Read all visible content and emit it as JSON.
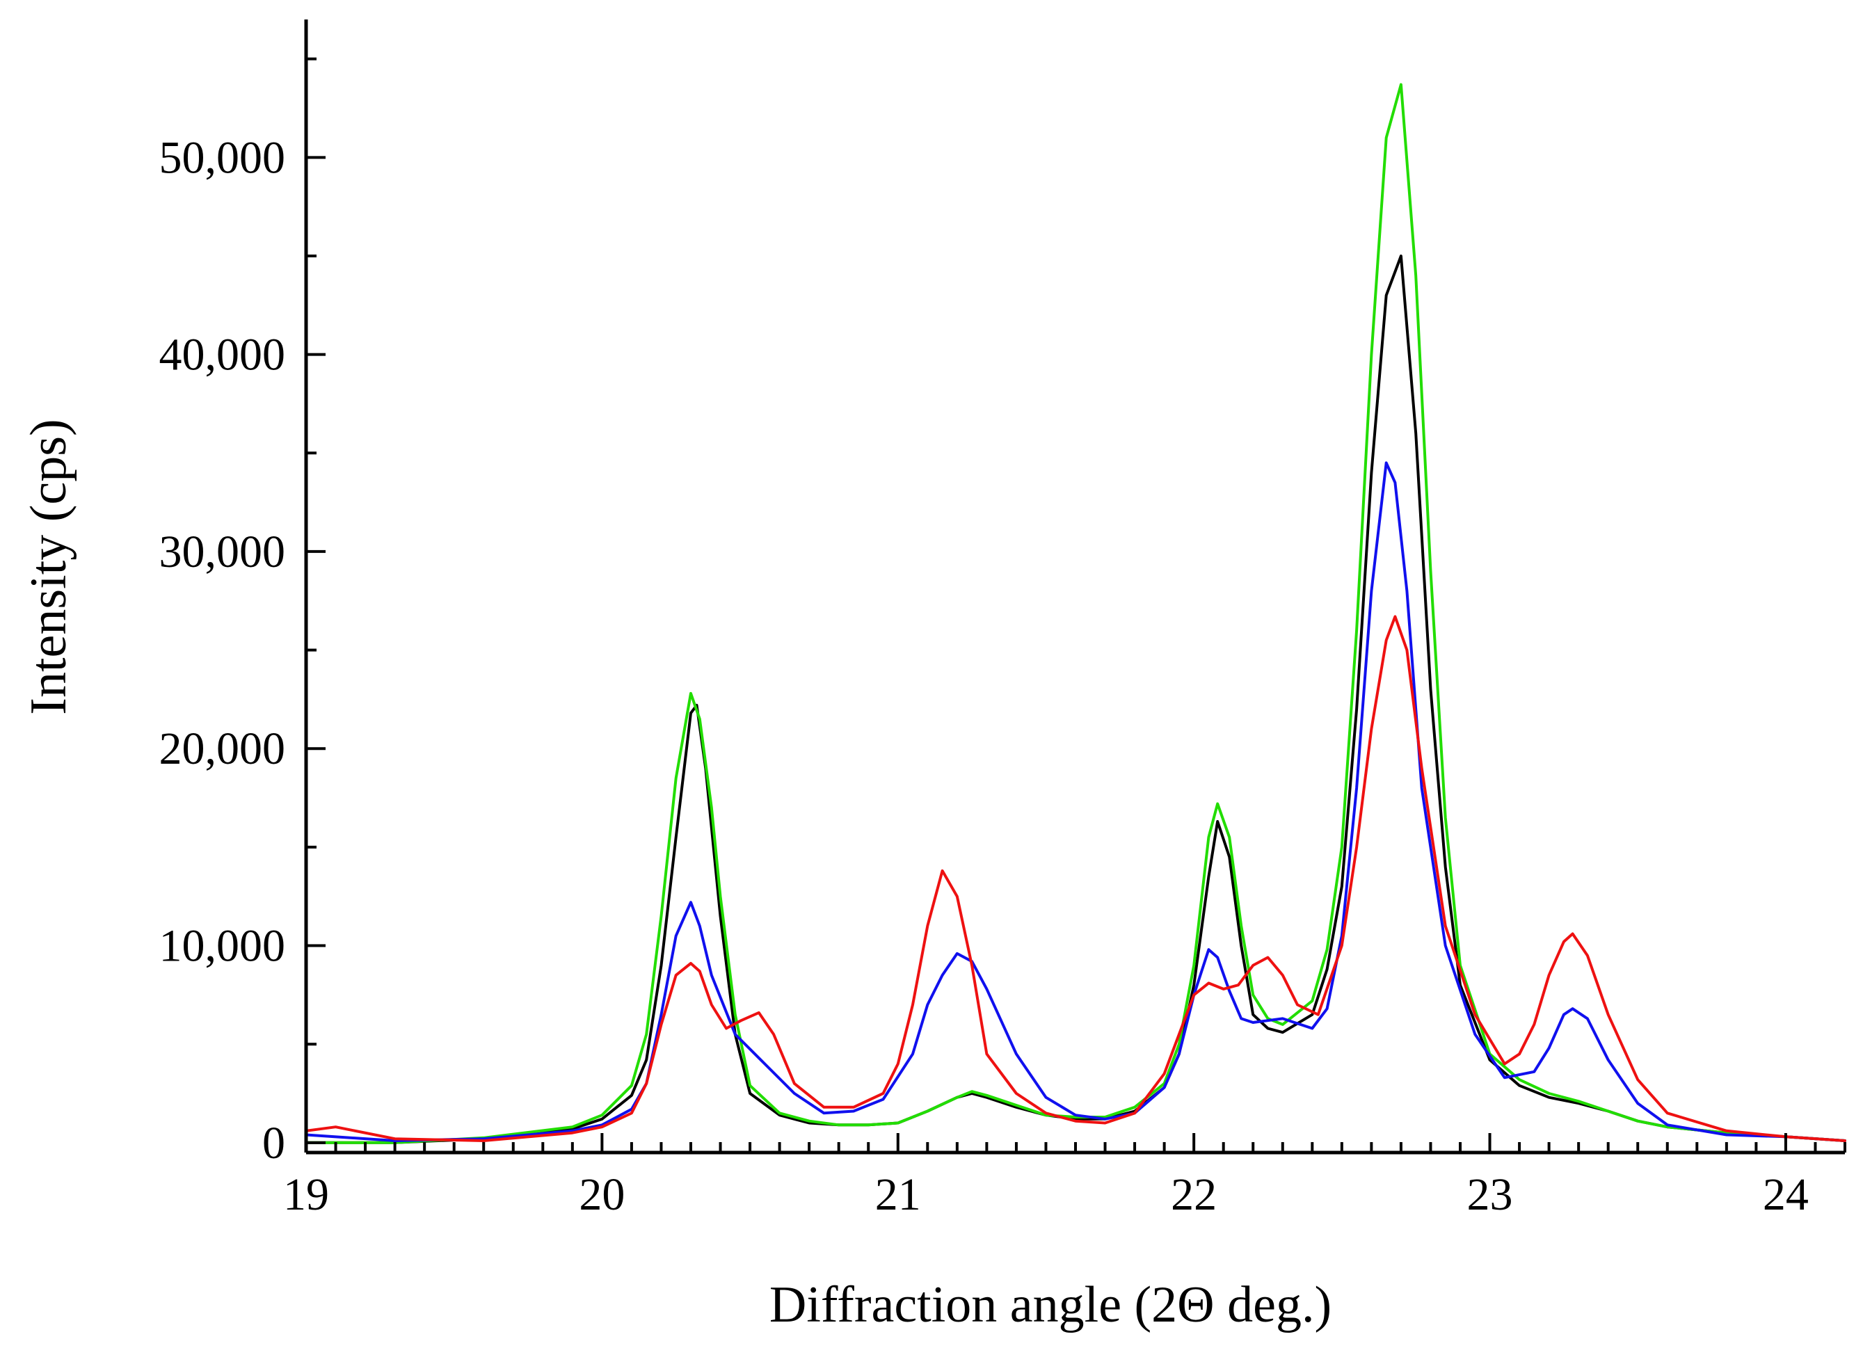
{
  "chart_data": {
    "type": "line",
    "title": "",
    "xlabel": "Diffraction angle (2Θ deg.)",
    "ylabel": "Intensity (cps)",
    "xlim": [
      19,
      24.2
    ],
    "ylim": [
      -500,
      57000
    ],
    "x_ticks": [
      19,
      20,
      21,
      22,
      23,
      24
    ],
    "x_tick_labels": [
      "19",
      "20",
      "21",
      "22",
      "23",
      "24"
    ],
    "y_ticks": [
      0,
      10000,
      20000,
      30000,
      40000,
      50000
    ],
    "y_tick_labels": [
      "0",
      "10,000",
      "20,000",
      "30,000",
      "40,000",
      "50,000"
    ],
    "grid": false,
    "legend": "none",
    "series": [
      {
        "name": "black",
        "color": "#000000",
        "x": [
          19.0,
          19.3,
          19.6,
          19.9,
          20.0,
          20.1,
          20.15,
          20.2,
          20.25,
          20.3,
          20.32,
          20.35,
          20.4,
          20.45,
          20.5,
          20.6,
          20.7,
          20.8,
          20.9,
          21.0,
          21.1,
          21.2,
          21.25,
          21.3,
          21.4,
          21.5,
          21.6,
          21.7,
          21.8,
          21.9,
          21.95,
          22.0,
          22.05,
          22.08,
          22.12,
          22.16,
          22.2,
          22.25,
          22.3,
          22.4,
          22.45,
          22.5,
          22.55,
          22.6,
          22.65,
          22.7,
          22.75,
          22.8,
          22.85,
          22.9,
          23.0,
          23.1,
          23.2,
          23.3,
          23.4,
          23.5,
          23.6,
          23.8,
          24.0,
          24.2
        ],
        "y": [
          0,
          0,
          200,
          700,
          1200,
          2400,
          4200,
          9000,
          15500,
          21800,
          22200,
          19000,
          11500,
          5500,
          2500,
          1400,
          1000,
          900,
          900,
          1000,
          1600,
          2300,
          2500,
          2300,
          1800,
          1400,
          1200,
          1200,
          1600,
          2800,
          4500,
          8000,
          13500,
          16300,
          14500,
          10000,
          6500,
          5800,
          5600,
          6500,
          8800,
          13000,
          22000,
          34000,
          43000,
          45000,
          36000,
          23000,
          14000,
          8000,
          4200,
          2900,
          2300,
          2000,
          1600,
          1100,
          800,
          500,
          300,
          100
        ]
      },
      {
        "name": "green",
        "color": "#22dd00",
        "x": [
          19.0,
          19.3,
          19.6,
          19.9,
          20.0,
          20.1,
          20.15,
          20.2,
          20.25,
          20.3,
          20.33,
          20.37,
          20.4,
          20.45,
          20.5,
          20.6,
          20.7,
          20.8,
          20.9,
          21.0,
          21.1,
          21.2,
          21.25,
          21.3,
          21.4,
          21.5,
          21.6,
          21.7,
          21.8,
          21.9,
          21.95,
          22.0,
          22.05,
          22.08,
          22.12,
          22.16,
          22.2,
          22.25,
          22.3,
          22.4,
          22.45,
          22.5,
          22.55,
          22.6,
          22.65,
          22.7,
          22.75,
          22.8,
          22.85,
          22.9,
          23.0,
          23.1,
          23.2,
          23.3,
          23.4,
          23.5,
          23.6,
          23.8,
          24.0,
          24.2
        ],
        "y": [
          0,
          0,
          250,
          800,
          1400,
          2900,
          5500,
          11500,
          18500,
          22800,
          21500,
          17000,
          12500,
          6500,
          2900,
          1500,
          1100,
          900,
          900,
          1000,
          1600,
          2300,
          2600,
          2400,
          1900,
          1400,
          1300,
          1300,
          1800,
          3000,
          5000,
          9000,
          15500,
          17200,
          15500,
          11000,
          7500,
          6300,
          6000,
          7200,
          9800,
          15000,
          26000,
          40000,
          51000,
          53700,
          44000,
          29000,
          16500,
          9000,
          4500,
          3200,
          2500,
          2100,
          1600,
          1100,
          800,
          500,
          300,
          100
        ]
      },
      {
        "name": "blue",
        "color": "#1010ee",
        "x": [
          19.0,
          19.3,
          19.6,
          19.9,
          20.0,
          20.1,
          20.15,
          20.2,
          20.25,
          20.3,
          20.33,
          20.37,
          20.45,
          20.55,
          20.65,
          20.75,
          20.85,
          20.95,
          21.05,
          21.1,
          21.15,
          21.2,
          21.25,
          21.3,
          21.4,
          21.5,
          21.6,
          21.7,
          21.8,
          21.9,
          21.95,
          22.0,
          22.05,
          22.08,
          22.12,
          22.16,
          22.2,
          22.25,
          22.3,
          22.4,
          22.45,
          22.5,
          22.55,
          22.6,
          22.65,
          22.68,
          22.72,
          22.77,
          22.85,
          22.95,
          23.05,
          23.15,
          23.2,
          23.25,
          23.28,
          23.33,
          23.4,
          23.5,
          23.6,
          23.8,
          24.0,
          24.2
        ],
        "y": [
          400,
          100,
          200,
          600,
          900,
          1700,
          3000,
          6500,
          10500,
          12200,
          11000,
          8500,
          5500,
          4000,
          2500,
          1500,
          1600,
          2200,
          4500,
          7000,
          8500,
          9600,
          9200,
          7800,
          4500,
          2300,
          1400,
          1200,
          1500,
          2800,
          4500,
          7500,
          9800,
          9400,
          7700,
          6300,
          6100,
          6200,
          6300,
          5800,
          6800,
          10500,
          18000,
          28000,
          34500,
          33500,
          28000,
          18000,
          10000,
          5500,
          3300,
          3600,
          4800,
          6500,
          6800,
          6300,
          4200,
          2000,
          900,
          400,
          300,
          100
        ]
      },
      {
        "name": "red",
        "color": "#ee1111",
        "x": [
          19.0,
          19.1,
          19.3,
          19.6,
          19.9,
          20.0,
          20.1,
          20.15,
          20.2,
          20.25,
          20.3,
          20.33,
          20.37,
          20.42,
          20.47,
          20.53,
          20.58,
          20.65,
          20.75,
          20.85,
          20.95,
          21.0,
          21.05,
          21.1,
          21.15,
          21.2,
          21.25,
          21.3,
          21.4,
          21.5,
          21.6,
          21.7,
          21.8,
          21.9,
          21.95,
          22.0,
          22.05,
          22.1,
          22.15,
          22.2,
          22.25,
          22.3,
          22.35,
          22.42,
          22.5,
          22.55,
          22.6,
          22.65,
          22.68,
          22.72,
          22.77,
          22.85,
          22.95,
          23.05,
          23.1,
          23.15,
          23.2,
          23.25,
          23.28,
          23.33,
          23.4,
          23.5,
          23.6,
          23.8,
          24.0,
          24.2
        ],
        "y": [
          600,
          800,
          200,
          100,
          500,
          800,
          1500,
          3000,
          6000,
          8500,
          9100,
          8700,
          7000,
          5800,
          6200,
          6600,
          5500,
          3000,
          1800,
          1800,
          2500,
          4000,
          7000,
          11000,
          13800,
          12500,
          9000,
          4500,
          2500,
          1500,
          1100,
          1000,
          1500,
          3500,
          5500,
          7500,
          8100,
          7800,
          8000,
          9000,
          9400,
          8500,
          7000,
          6500,
          10000,
          15000,
          21000,
          25500,
          26700,
          25000,
          19000,
          11000,
          6500,
          4000,
          4500,
          6000,
          8500,
          10200,
          10600,
          9500,
          6500,
          3200,
          1500,
          600,
          300,
          100
        ]
      }
    ]
  }
}
